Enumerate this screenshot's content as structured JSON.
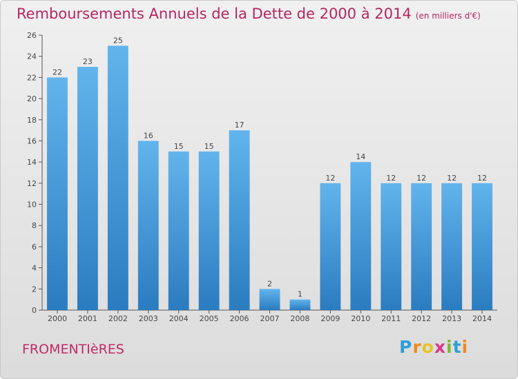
{
  "header": {
    "title": "Remboursements Annuels de la Dette de 2000 à 2014",
    "subtitle": "(en milliers d'€)"
  },
  "footer": {
    "commune": "FROMENTIèRES",
    "logo_letters": [
      "P",
      "r",
      "o",
      "x",
      "i",
      "t",
      "i"
    ],
    "logo_colors": [
      "#2d9fd8",
      "#f08a1d",
      "#e8c32a",
      "#d63a8a",
      "#7ab83a",
      "#2d9fd8",
      "#f08a1d"
    ]
  },
  "colors": {
    "bar_light": "#62b4ec",
    "bar_dark": "#2a7cc0",
    "axis": "#555555",
    "title": "#b5265f"
  },
  "chart_data": {
    "type": "bar",
    "title": "Remboursements Annuels de la Dette de 2000 à 2014",
    "subtitle": "(en milliers d'€)",
    "categories": [
      "2000",
      "2001",
      "2002",
      "2003",
      "2004",
      "2005",
      "2006",
      "2007",
      "2008",
      "2009",
      "2010",
      "2011",
      "2012",
      "2013",
      "2014"
    ],
    "values": [
      22,
      23,
      25,
      16,
      15,
      15,
      17,
      2,
      1,
      12,
      14,
      12,
      12,
      12,
      12
    ],
    "value_labels": [
      "22",
      "23",
      "25",
      "16",
      "15",
      "15",
      "17",
      "2",
      "1",
      "12",
      "14",
      "12",
      "12",
      "12",
      "12"
    ],
    "ylim": [
      0,
      26
    ],
    "yticks": [
      "0",
      "2",
      "4",
      "6",
      "8",
      "10",
      "12",
      "14",
      "16",
      "18",
      "20",
      "22",
      "24",
      "26"
    ],
    "grid": false,
    "legend": "none"
  }
}
